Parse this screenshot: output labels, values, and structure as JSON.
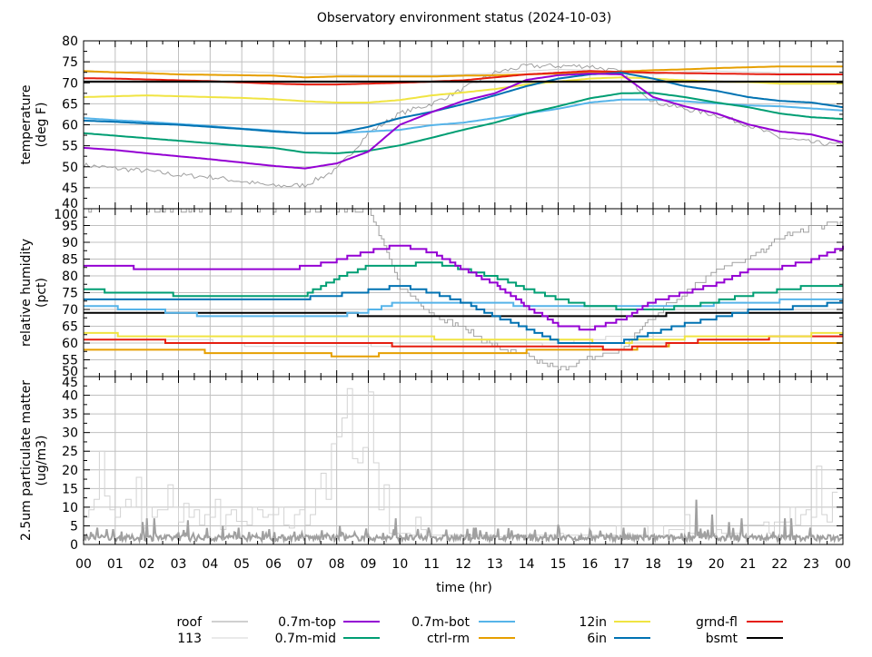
{
  "chart_data": {
    "type": "line",
    "title": "Observatory environment status (2024-10-03)",
    "xlabel": "time (hr)",
    "x_ticks": [
      "00",
      "01",
      "02",
      "03",
      "04",
      "05",
      "06",
      "07",
      "08",
      "09",
      "10",
      "11",
      "12",
      "13",
      "14",
      "15",
      "16",
      "17",
      "18",
      "19",
      "20",
      "21",
      "22",
      "23",
      "00"
    ],
    "xlim": [
      0,
      24
    ],
    "grid": true,
    "legend_position": "bottom",
    "series_styles": [
      {
        "name": "roof",
        "color": "#a0a0a0"
      },
      {
        "name": "113",
        "color": "#d3d3d3"
      },
      {
        "name": "0.7m-top",
        "color": "#9400d3"
      },
      {
        "name": "0.7m-mid",
        "color": "#009e73"
      },
      {
        "name": "0.7m-bot",
        "color": "#56b4e9"
      },
      {
        "name": "ctrl-rm",
        "color": "#e69f00"
      },
      {
        "name": "12in",
        "color": "#f0e442"
      },
      {
        "name": "6in",
        "color": "#0072b2"
      },
      {
        "name": "grnd-fl",
        "color": "#e51e10"
      },
      {
        "name": "bsmt",
        "color": "#000000"
      }
    ],
    "panels": [
      {
        "ylabel": [
          "temperature",
          "(deg F)"
        ],
        "ylim": [
          40,
          80
        ],
        "y_ticks": [
          40,
          45,
          50,
          55,
          60,
          65,
          70,
          75,
          80
        ],
        "step": false,
        "x_hours_note": "values sampled hourly 0..24",
        "series": [
          {
            "name": "113",
            "values": [
              72.5,
              72.5,
              72.8,
              72.8,
              72.8,
              72.6,
              72.4,
              72.2,
              72,
              71.8,
              71.8,
              71.8,
              72,
              72.3,
              72.8,
              73.2,
              73,
              72.5,
              72,
              72.6,
              72.8,
              72.6,
              72.4,
              72.3,
              72.2
            ]
          },
          {
            "name": "roof",
            "values": [
              50.4,
              49.6,
              49,
              48,
              47.6,
              46.5,
              45.4,
              45.6,
              49.3,
              58,
              62.7,
              65,
              68.5,
              72.4,
              74,
              74,
              74,
              72.5,
              65.5,
              63.8,
              62.3,
              60,
              56.9,
              55.8,
              55.1
            ]
          },
          {
            "name": "ctrl-rm",
            "values": [
              72.8,
              72.5,
              72.3,
              72,
              71.9,
              71.8,
              71.7,
              71.3,
              71.5,
              71.5,
              71.5,
              71.5,
              71.7,
              71.8,
              72,
              72.2,
              72.4,
              72.7,
              73,
              73.2,
              73.5,
              73.7,
              73.9,
              73.9,
              73.9
            ]
          },
          {
            "name": "grnd-fl",
            "values": [
              71.1,
              71,
              70.8,
              70.6,
              70.4,
              70.1,
              69.8,
              69.6,
              69.6,
              69.8,
              70,
              70.3,
              70.6,
              71.3,
              72,
              72.4,
              72.8,
              72.6,
              72.4,
              72.3,
              72.2,
              72.1,
              72,
              72,
              72
            ]
          },
          {
            "name": "12in",
            "values": [
              66.6,
              66.8,
              67,
              66.8,
              66.6,
              66.4,
              66.1,
              65.6,
              65.3,
              65.3,
              65.9,
              67,
              67.7,
              68.5,
              69.6,
              70.3,
              71,
              71.3,
              71,
              70.6,
              70.3,
              70.2,
              69.8,
              69.8,
              69.8
            ]
          },
          {
            "name": "0.7m-bot",
            "values": [
              61.6,
              61.1,
              60.7,
              60.2,
              59.7,
              59.1,
              58.6,
              58,
              58,
              58.4,
              58.8,
              59.9,
              60.5,
              61.6,
              62.7,
              63.8,
              65.3,
              66,
              66,
              65.6,
              65.1,
              64.6,
              64.4,
              63.9,
              63.4
            ]
          },
          {
            "name": "0.7m-mid",
            "values": [
              58,
              57.4,
              56.8,
              56.2,
              55.6,
              55,
              54.5,
              53.4,
              53.2,
              53.8,
              55.1,
              56.9,
              58.8,
              60.5,
              62.7,
              64.4,
              66.3,
              67.5,
              67.6,
              66.6,
              65.3,
              64.2,
              62.7,
              61.8,
              61.4
            ]
          },
          {
            "name": "6in",
            "values": [
              61,
              60.7,
              60.3,
              60,
              59.5,
              59,
              58.4,
              58,
              58,
              59.5,
              61.6,
              63.1,
              64.9,
              67,
              69.2,
              71,
              72,
              72.4,
              71,
              69.2,
              68.1,
              66.6,
              65.7,
              65.3,
              64.2
            ]
          },
          {
            "name": "0.7m-top",
            "values": [
              54.5,
              54,
              53.2,
              52.5,
              51.8,
              51,
              50.2,
              49.6,
              50.8,
              53.6,
              60,
              63,
              65.7,
              67.5,
              70.7,
              71.8,
              72.2,
              72,
              66.6,
              64.4,
              62.7,
              60.1,
              58.4,
              57.7,
              55.8
            ]
          },
          {
            "name": "bsmt",
            "values": [
              70.3,
              70.3,
              70.3,
              70.3,
              70.3,
              70.3,
              70.3,
              70.3,
              70.3,
              70.3,
              70.3,
              70.3,
              70.3,
              70.3,
              70.3,
              70.3,
              70.3,
              70.3,
              70.3,
              70.3,
              70.3,
              70.3,
              70.3,
              70.3,
              70.3
            ]
          }
        ]
      },
      {
        "ylabel": [
          "relative humidity",
          "(pct)"
        ],
        "ylim": [
          50,
          100
        ],
        "y_ticks": [
          50,
          55,
          60,
          65,
          70,
          75,
          80,
          85,
          90,
          95,
          100
        ],
        "step": true,
        "series": [
          {
            "name": "113",
            "values": [
              61,
              61,
              61,
              61,
              60.5,
              59.5,
              59,
              59,
              59,
              59.5,
              59,
              58.5,
              58.5,
              58.5,
              59,
              60,
              61,
              62,
              62,
              62,
              62,
              62,
              62,
              62,
              62
            ]
          },
          {
            "name": "roof",
            "values": [
              100,
              100,
              100,
              100,
              100,
              100,
              100,
              100,
              100,
              100,
              77,
              69,
              64.3,
              59,
              56,
              52,
              55.4,
              58,
              68,
              75,
              82,
              84.6,
              91.4,
              94.5,
              96
            ]
          },
          {
            "name": "ctrl-rm",
            "values": [
              58.1,
              58.1,
              58.1,
              58.1,
              57.3,
              57.3,
              57.3,
              57.3,
              56.3,
              56.3,
              57,
              57,
              57,
              57,
              57.5,
              58.1,
              58.1,
              58.1,
              59,
              60,
              60.1,
              60.1,
              60.1,
              60.1,
              60.1
            ]
          },
          {
            "name": "grnd-fl",
            "values": [
              61,
              61,
              61,
              60.1,
              60.1,
              60.1,
              60.1,
              60.1,
              60.1,
              60.1,
              59.2,
              59.2,
              58.9,
              58.9,
              58.6,
              58.9,
              58.6,
              58.3,
              59,
              60.3,
              60.8,
              61.3,
              61.6,
              61.8,
              62.2
            ]
          },
          {
            "name": "12in",
            "values": [
              63,
              62.5,
              62.2,
              62.2,
              62.2,
              62.2,
              62.2,
              62.2,
              62.2,
              62.2,
              62.2,
              61.5,
              60.8,
              60.8,
              60.8,
              60.8,
              60.5,
              60.3,
              61,
              61.5,
              61.9,
              62.2,
              62.2,
              62.5,
              63
            ]
          },
          {
            "name": "bsmt",
            "values": [
              69.2,
              69.2,
              69.2,
              69.2,
              69.2,
              69.2,
              69.2,
              69.2,
              69.2,
              68.1,
              68.1,
              68.1,
              68.1,
              68.1,
              68.1,
              68.1,
              68.1,
              68.1,
              68.1,
              69.2,
              69.2,
              69.2,
              69.2,
              69.2,
              69.2
            ]
          },
          {
            "name": "0.7m-bot",
            "values": [
              71.1,
              70.5,
              70.1,
              69,
              68.1,
              68.1,
              68.1,
              68.1,
              68.1,
              69.5,
              72.2,
              72.2,
              72.2,
              72,
              71.1,
              71.1,
              71.1,
              71,
              70.8,
              70.8,
              71.6,
              72.2,
              72.5,
              73.2,
              73.2
            ]
          },
          {
            "name": "6in",
            "values": [
              73.2,
              73.2,
              73.2,
              73.2,
              73.2,
              73.2,
              73.2,
              73.4,
              74.3,
              75.5,
              77,
              75.1,
              72.2,
              68.1,
              64.3,
              60.3,
              60,
              60.3,
              63,
              65.7,
              67.6,
              69.5,
              70.3,
              70.8,
              72.2
            ]
          },
          {
            "name": "0.7m-mid",
            "values": [
              76.2,
              75.1,
              75.1,
              74.3,
              74.1,
              74.1,
              74.1,
              74.3,
              79.3,
              82.9,
              83.1,
              84,
              82,
              79.7,
              76.2,
              73,
              71.1,
              70.3,
              70,
              70.8,
              72.4,
              74.3,
              75.7,
              77,
              77.3
            ]
          },
          {
            "name": "0.7m-top",
            "values": [
              83.1,
              83,
              82.1,
              82.1,
              82.1,
              82.1,
              82.1,
              82.6,
              84.6,
              87.3,
              89.2,
              87,
              82,
              77.6,
              70.8,
              65.4,
              64,
              67,
              72.4,
              75,
              77.6,
              81.6,
              82.4,
              84.6,
              88.6
            ]
          }
        ]
      },
      {
        "ylabel": [
          "2.5um particulate matter",
          "(ug/m3)"
        ],
        "ylim": [
          0,
          45
        ],
        "y_ticks": [
          0,
          5,
          10,
          15,
          20,
          25,
          30,
          35,
          40,
          45
        ],
        "step": true,
        "series": [
          {
            "name": "113",
            "interval_minutes": 10,
            "values": [
              7.3,
              9.3,
              12.1,
              25,
              13,
              9.3,
              7.3,
              10,
              12.1,
              10,
              18,
              4.4,
              10,
              7.3,
              9.3,
              9.3,
              16,
              10,
              6,
              11,
              7.3,
              9.3,
              5.2,
              8,
              7.3,
              12.1,
              4,
              8,
              9.3,
              6.2,
              6.2,
              5.2,
              10,
              9.3,
              7.3,
              8,
              8,
              10,
              5.2,
              4.4,
              8,
              9.3,
              5.2,
              8,
              14.9,
              19.1,
              12.1,
              27,
              28.9,
              33.9,
              41.8,
              23,
              21.9,
              26,
              40.9,
              21.9,
              9.3,
              16,
              3,
              3,
              3,
              3,
              2.5,
              7.3,
              4,
              2.5,
              2.5,
              2.5,
              2.5,
              2.5,
              2.5,
              2.5,
              2.5,
              2.5,
              2.5,
              2.5,
              2.5,
              2.5,
              2,
              2,
              2.5,
              2.5,
              2.5,
              2.5,
              2.5,
              2.5,
              2.5,
              2.5,
              2.5,
              2.5,
              3,
              2.5,
              2.5,
              2.5,
              2.5,
              2.5,
              2.5,
              2.5,
              2.5,
              2.5,
              2.5,
              5,
              2.5,
              2.5,
              2.5,
              2.5,
              2.5,
              5,
              5,
              5,
              2.5,
              4,
              4,
              4,
              8,
              3,
              3,
              3,
              3,
              3,
              4,
              3,
              3,
              3,
              3,
              5.2,
              5.2,
              5.2,
              5.2,
              6,
              3,
              6,
              6,
              6,
              10,
              5.2,
              8,
              9.3,
              7.3,
              21,
              8,
              6,
              14
            ]
          },
          {
            "name": "roof",
            "baseline": 1.6,
            "spikes": [
              [
                0.42,
                4.5
              ],
              [
                1.86,
                6
              ],
              [
                2.0,
                7
              ],
              [
                2.24,
                7
              ],
              [
                3.3,
                6.5
              ],
              [
                4.4,
                5
              ],
              [
                4.9,
                4.5
              ],
              [
                8.1,
                5
              ],
              [
                9.85,
                7
              ],
              [
                10.9,
                4.5
              ],
              [
                12.33,
                4.5
              ],
              [
                15.0,
                5.3
              ],
              [
                17.05,
                4.5
              ],
              [
                17.74,
                4.5
              ],
              [
                19.35,
                12
              ],
              [
                19.85,
                8
              ],
              [
                20.4,
                6
              ],
              [
                20.8,
                7
              ],
              [
                22.16,
                7
              ],
              [
                22.36,
                7
              ],
              [
                22.96,
                4.5
              ]
            ]
          }
        ]
      }
    ]
  },
  "legend": [
    {
      "label": "roof",
      "series": "roof"
    },
    {
      "label": "113",
      "series": "113"
    },
    {
      "label": "0.7m-top",
      "series": "0.7m-top"
    },
    {
      "label": "0.7m-mid",
      "series": "0.7m-mid"
    },
    {
      "label": "0.7m-bot",
      "series": "0.7m-bot"
    },
    {
      "label": "ctrl-rm",
      "series": "ctrl-rm"
    },
    {
      "label": "12in",
      "series": "12in"
    },
    {
      "label": "6in",
      "series": "6in"
    },
    {
      "label": "grnd-fl",
      "series": "grnd-fl"
    },
    {
      "label": "bsmt",
      "series": "bsmt"
    }
  ]
}
